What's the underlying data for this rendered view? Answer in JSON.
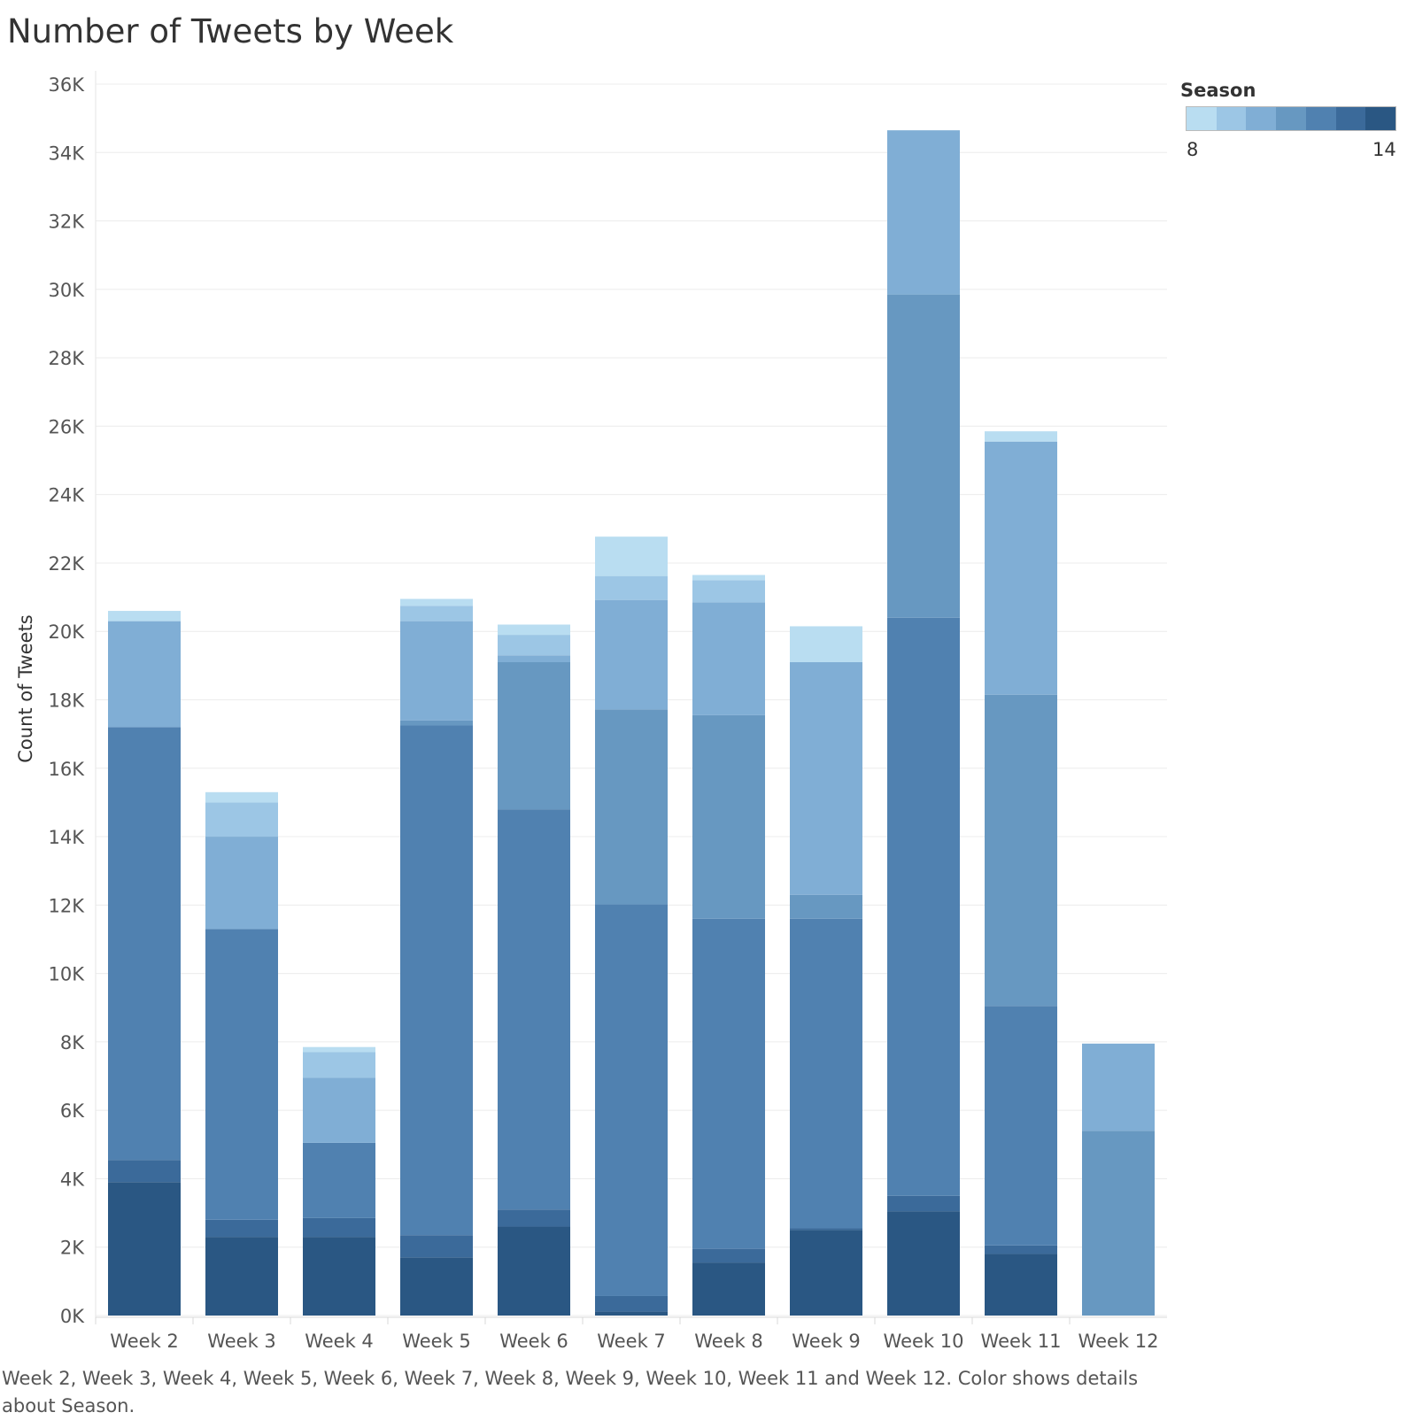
{
  "chart_data": {
    "type": "bar",
    "stacked": true,
    "title": "Number of Tweets by Week",
    "xlabel": "",
    "ylabel": "Count of Tweets",
    "ylim": [
      0,
      36000
    ],
    "yticks": [
      0,
      2000,
      4000,
      6000,
      8000,
      10000,
      12000,
      14000,
      16000,
      18000,
      20000,
      22000,
      24000,
      26000,
      28000,
      30000,
      32000,
      34000,
      36000
    ],
    "ytick_labels": [
      "0K",
      "2K",
      "4K",
      "6K",
      "8K",
      "10K",
      "12K",
      "14K",
      "16K",
      "18K",
      "20K",
      "22K",
      "24K",
      "26K",
      "28K",
      "30K",
      "32K",
      "34K",
      "36K"
    ],
    "grid": true,
    "categories": [
      "Week 2",
      "Week 3",
      "Week 4",
      "Week 5",
      "Week 6",
      "Week 7",
      "Week 8",
      "Week 9",
      "Week 10",
      "Week 11",
      "Week 12"
    ],
    "series": [
      {
        "color": "#2a5783",
        "values": [
          3900,
          2300,
          2300,
          1700,
          2600,
          120,
          1550,
          2500,
          3050,
          1800,
          0
        ]
      },
      {
        "color": "#3b6a9a",
        "values": [
          650,
          500,
          550,
          650,
          500,
          450,
          400,
          50,
          450,
          250,
          0
        ]
      },
      {
        "color": "#5081b0",
        "values": [
          12650,
          8500,
          2200,
          14900,
          11700,
          11450,
          9650,
          9050,
          16900,
          7000,
          0
        ]
      },
      {
        "color": "#6798c1",
        "values": [
          0,
          0,
          0,
          150,
          4300,
          5700,
          5950,
          700,
          9450,
          9100,
          5400
        ]
      },
      {
        "color": "#80aed5",
        "values": [
          3100,
          2700,
          1900,
          2900,
          200,
          3200,
          3300,
          6800,
          4800,
          7400,
          2550
        ]
      },
      {
        "color": "#9cc6e5",
        "values": [
          0,
          1000,
          750,
          450,
          600,
          700,
          650,
          0,
          0,
          0,
          0
        ]
      },
      {
        "color": "#b9ddf1",
        "values": [
          300,
          300,
          150,
          200,
          300,
          1150,
          150,
          1050,
          0,
          300,
          0
        ]
      }
    ],
    "legend": {
      "title": "Season",
      "placement": "top-right",
      "min_label": "8",
      "max_label": "14",
      "colors": [
        "#b9ddf1",
        "#9cc6e5",
        "#80aed5",
        "#6798c1",
        "#5081b0",
        "#3b6a9a",
        "#2a5783"
      ]
    },
    "caption": "Week 2, Week 3, Week 4, Week 5, Week 6, Week 7, Week 8, Week 9, Week 10, Week 11 and Week 12.  Color shows details about Season."
  }
}
